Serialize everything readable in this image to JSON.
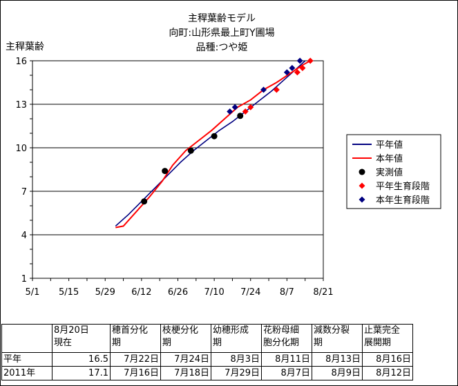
{
  "chart_data": {
    "type": "line",
    "title": [
      "主稈葉齢モデル",
      "向町:山形県最上町Y圃場",
      "品種:つや姫"
    ],
    "ylabel": "主稈葉齢",
    "xlabel": "",
    "ylim": [
      1,
      16
    ],
    "yticks": [
      1,
      4,
      7,
      10,
      13,
      16
    ],
    "xlim": [
      "2011-05-01",
      "2011-08-21"
    ],
    "xticks": [
      {
        "date": "2011-05-01",
        "label": "5/1"
      },
      {
        "date": "2011-05-15",
        "label": "5/15"
      },
      {
        "date": "2011-05-29",
        "label": "5/29"
      },
      {
        "date": "2011-06-12",
        "label": "6/12"
      },
      {
        "date": "2011-06-26",
        "label": "6/26"
      },
      {
        "date": "2011-07-10",
        "label": "7/10"
      },
      {
        "date": "2011-07-24",
        "label": "7/24"
      },
      {
        "date": "2011-08-07",
        "label": "8/7"
      },
      {
        "date": "2011-08-21",
        "label": "8/21"
      }
    ],
    "grid": "horizontal",
    "legend_position": "right",
    "series": [
      {
        "name": "平年値",
        "kind": "line",
        "color": "#000080",
        "points": [
          [
            "2011-06-02",
            4.6
          ],
          [
            "2011-06-07",
            5.4
          ],
          [
            "2011-06-12",
            6.3
          ],
          [
            "2011-06-17",
            7.2
          ],
          [
            "2011-06-22",
            8.1
          ],
          [
            "2011-06-27",
            9.0
          ],
          [
            "2011-07-02",
            9.8
          ],
          [
            "2011-07-07",
            10.5
          ],
          [
            "2011-07-12",
            11.2
          ],
          [
            "2011-07-17",
            11.8
          ],
          [
            "2011-07-22",
            12.5
          ],
          [
            "2011-07-27",
            13.2
          ],
          [
            "2011-08-01",
            13.9
          ],
          [
            "2011-08-06",
            14.7
          ],
          [
            "2011-08-11",
            15.5
          ],
          [
            "2011-08-14",
            16.0
          ]
        ]
      },
      {
        "name": "本年値",
        "kind": "line",
        "color": "#ff0000",
        "points": [
          [
            "2011-06-02",
            4.5
          ],
          [
            "2011-06-05",
            4.6
          ],
          [
            "2011-06-10",
            5.6
          ],
          [
            "2011-06-15",
            6.6
          ],
          [
            "2011-06-20",
            7.7
          ],
          [
            "2011-06-24",
            8.8
          ],
          [
            "2011-06-29",
            9.8
          ],
          [
            "2011-07-04",
            10.5
          ],
          [
            "2011-07-09",
            11.2
          ],
          [
            "2011-07-14",
            12.0
          ],
          [
            "2011-07-19",
            12.8
          ],
          [
            "2011-07-24",
            13.3
          ],
          [
            "2011-07-29",
            14.0
          ],
          [
            "2011-08-03",
            14.5
          ],
          [
            "2011-08-08",
            15.1
          ],
          [
            "2011-08-13",
            15.7
          ],
          [
            "2011-08-16",
            16.0
          ]
        ]
      },
      {
        "name": "実測値",
        "kind": "points",
        "marker": "circle",
        "color": "#000000",
        "points": [
          [
            "2011-06-13",
            6.3
          ],
          [
            "2011-06-21",
            8.4
          ],
          [
            "2011-07-01",
            9.8
          ],
          [
            "2011-07-10",
            10.8
          ],
          [
            "2011-07-20",
            12.2
          ]
        ]
      },
      {
        "name": "平年生育段階",
        "kind": "points",
        "marker": "diamond",
        "color": "#ff0000",
        "points": [
          [
            "2011-07-22",
            12.5
          ],
          [
            "2011-07-24",
            12.8
          ],
          [
            "2011-08-03",
            14.0
          ],
          [
            "2011-08-11",
            15.2
          ],
          [
            "2011-08-13",
            15.5
          ],
          [
            "2011-08-16",
            16.0
          ]
        ]
      },
      {
        "name": "本年生育段階",
        "kind": "points",
        "marker": "diamond",
        "color": "#000080",
        "points": [
          [
            "2011-07-16",
            12.5
          ],
          [
            "2011-07-18",
            12.8
          ],
          [
            "2011-07-29",
            14.0
          ],
          [
            "2011-08-07",
            15.2
          ],
          [
            "2011-08-09",
            15.5
          ],
          [
            "2011-08-12",
            16.0
          ]
        ]
      }
    ]
  },
  "table": {
    "headers": [
      "8月20日\n現在",
      "穂首分化\n期",
      "枝梗分化\n期",
      "幼穂形成\n期",
      "花粉母細\n胞分化期",
      "減数分裂\n期",
      "止葉完全\n展開期"
    ],
    "rows": [
      {
        "label": "平年",
        "values": [
          "16.5",
          "7月22日",
          "7月24日",
          "8月3日",
          "8月11日",
          "8月13日",
          "8月16日"
        ]
      },
      {
        "label": "2011年",
        "values": [
          "17.1",
          "7月16日",
          "7月18日",
          "7月29日",
          "8月7日",
          "8月9日",
          "8月12日"
        ]
      }
    ]
  }
}
